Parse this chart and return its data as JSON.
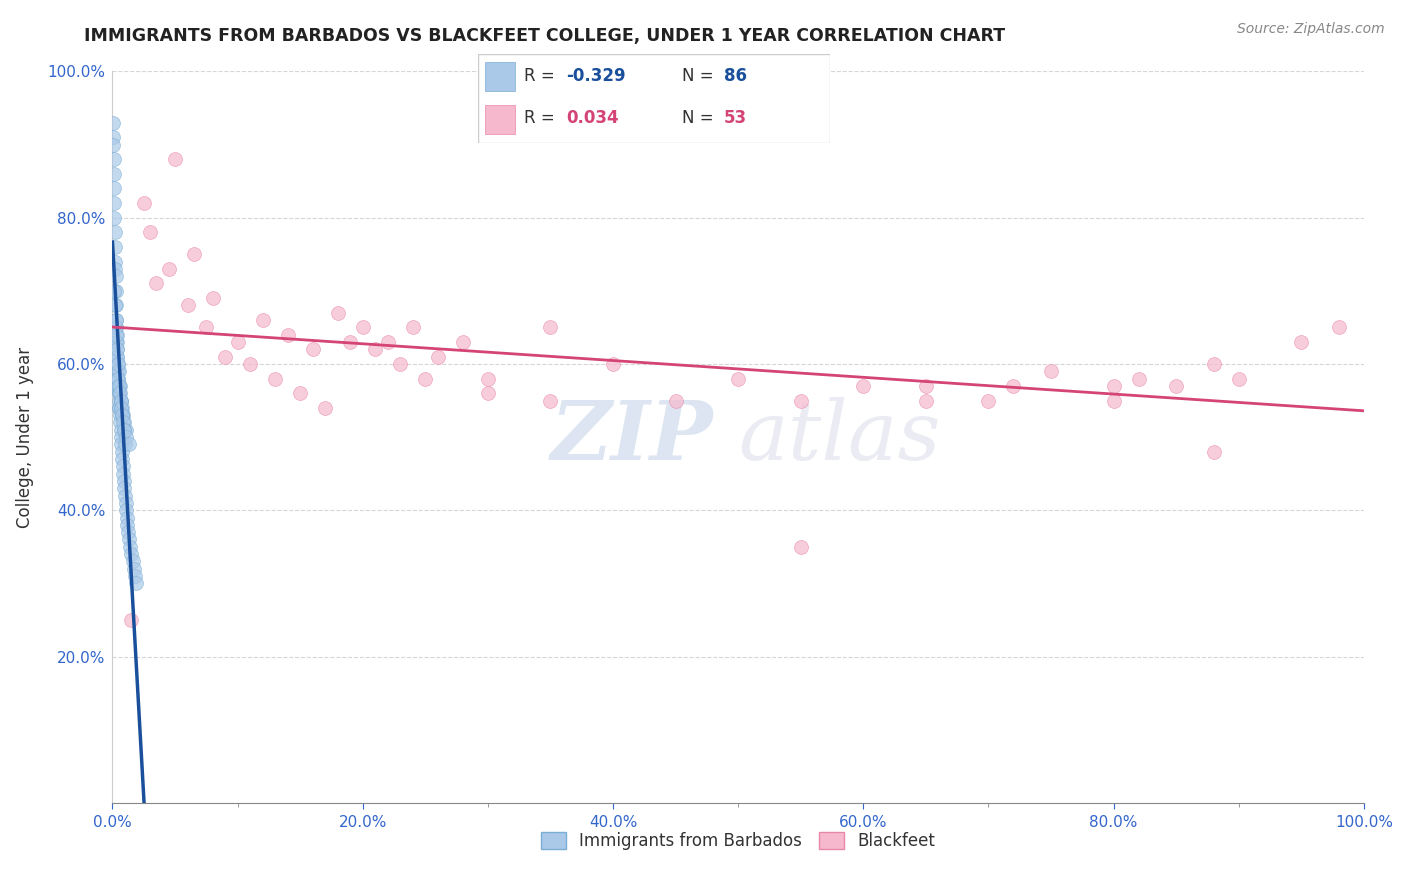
{
  "title": "IMMIGRANTS FROM BARBADOS VS BLACKFEET COLLEGE, UNDER 1 YEAR CORRELATION CHART",
  "source": "Source: ZipAtlas.com",
  "ylabel": "College, Under 1 year",
  "x_tick_labels": [
    "0.0%",
    "",
    "",
    "",
    "",
    "",
    "",
    "",
    "",
    "",
    "20.0%",
    "",
    "",
    "",
    "",
    "",
    "",
    "",
    "",
    "",
    "40.0%",
    "",
    "",
    "",
    "",
    "",
    "",
    "",
    "",
    "",
    "60.0%",
    "",
    "",
    "",
    "",
    "",
    "",
    "",
    "",
    "",
    "80.0%",
    "",
    "",
    "",
    "",
    "",
    "",
    "",
    "",
    "",
    "100.0%"
  ],
  "x_tick_values": [
    0,
    2,
    4,
    6,
    8,
    10,
    12,
    14,
    16,
    18,
    20,
    22,
    24,
    26,
    28,
    30,
    32,
    34,
    36,
    38,
    40,
    42,
    44,
    46,
    48,
    50,
    52,
    54,
    56,
    58,
    60,
    62,
    64,
    66,
    68,
    70,
    72,
    74,
    76,
    78,
    80,
    82,
    84,
    86,
    88,
    90,
    92,
    94,
    96,
    98,
    100
  ],
  "y_tick_labels": [
    "",
    "20.0%",
    "40.0%",
    "60.0%",
    "80.0%",
    "100.0%"
  ],
  "y_tick_values": [
    0,
    20,
    40,
    60,
    80,
    100
  ],
  "xlim": [
    0,
    100
  ],
  "ylim": [
    0,
    100
  ],
  "series1_name": "Immigrants from Barbados",
  "series1_R": -0.329,
  "series1_N": 86,
  "series1_color": "#aac9e8",
  "series1_edge_color": "#7aadd4",
  "series1_line_color": "#1a4f9c",
  "series2_name": "Blackfeet",
  "series2_R": 0.034,
  "series2_N": 53,
  "series2_color": "#f5b8cd",
  "series2_edge_color": "#e888a8",
  "series2_line_color": "#d44477",
  "watermark_zip": "ZIP",
  "watermark_atlas": "atlas",
  "background_color": "#ffffff",
  "grid_color": "#cccccc",
  "series1_x": [
    0.05,
    0.05,
    0.08,
    0.1,
    0.1,
    0.12,
    0.15,
    0.15,
    0.18,
    0.2,
    0.2,
    0.22,
    0.25,
    0.28,
    0.3,
    0.3,
    0.32,
    0.35,
    0.38,
    0.4,
    0.4,
    0.42,
    0.45,
    0.45,
    0.48,
    0.5,
    0.5,
    0.52,
    0.55,
    0.6,
    0.62,
    0.65,
    0.7,
    0.72,
    0.75,
    0.8,
    0.82,
    0.85,
    0.9,
    0.95,
    1.0,
    1.05,
    1.1,
    1.15,
    1.2,
    1.25,
    1.3,
    1.4,
    1.5,
    1.6,
    1.7,
    1.8,
    1.9,
    0.35,
    0.45,
    0.55,
    0.65,
    0.75,
    0.85,
    0.95,
    1.05,
    0.25,
    0.3,
    0.4,
    0.5,
    0.6,
    0.7,
    0.8,
    0.9,
    1.0,
    0.15,
    0.2,
    0.25,
    0.3,
    0.35,
    0.42,
    0.48,
    0.52,
    0.58,
    0.65,
    0.72,
    0.78,
    0.88,
    0.95,
    1.1,
    1.3
  ],
  "series1_y": [
    93,
    91,
    90,
    88,
    86,
    84,
    82,
    80,
    78,
    76,
    74,
    73,
    72,
    70,
    68,
    66,
    65,
    64,
    63,
    62,
    61,
    60,
    59,
    58,
    57,
    56,
    55,
    54,
    54,
    53,
    52,
    51,
    50,
    49,
    48,
    47,
    46,
    45,
    44,
    43,
    42,
    41,
    40,
    39,
    38,
    37,
    36,
    35,
    34,
    33,
    32,
    31,
    30,
    58,
    57,
    56,
    55,
    54,
    53,
    52,
    51,
    65,
    63,
    61,
    59,
    57,
    55,
    53,
    51,
    49,
    70,
    68,
    66,
    64,
    62,
    60,
    58,
    57,
    56,
    55,
    54,
    53,
    52,
    51,
    50,
    49
  ],
  "series2_x": [
    1.5,
    2.5,
    3.5,
    5.0,
    6.5,
    8.0,
    10.0,
    12.0,
    14.0,
    16.0,
    18.0,
    20.0,
    22.0,
    24.0,
    26.0,
    28.0,
    30.0,
    35.0,
    40.0,
    45.0,
    50.0,
    55.0,
    60.0,
    65.0,
    70.0,
    75.0,
    80.0,
    82.0,
    85.0,
    88.0,
    90.0,
    95.0,
    98.0,
    3.0,
    4.5,
    6.0,
    7.5,
    9.0,
    11.0,
    13.0,
    15.0,
    17.0,
    19.0,
    21.0,
    23.0,
    25.0,
    30.0,
    35.0,
    55.0,
    65.0,
    72.0,
    80.0,
    88.0
  ],
  "series2_y": [
    25,
    82,
    71,
    88,
    75,
    69,
    63,
    66,
    64,
    62,
    67,
    65,
    63,
    65,
    61,
    63,
    58,
    65,
    60,
    55,
    58,
    35,
    57,
    55,
    55,
    59,
    57,
    58,
    57,
    48,
    58,
    63,
    65,
    78,
    73,
    68,
    65,
    61,
    60,
    58,
    56,
    54,
    63,
    62,
    60,
    58,
    56,
    55,
    55,
    57,
    57,
    55,
    60
  ]
}
